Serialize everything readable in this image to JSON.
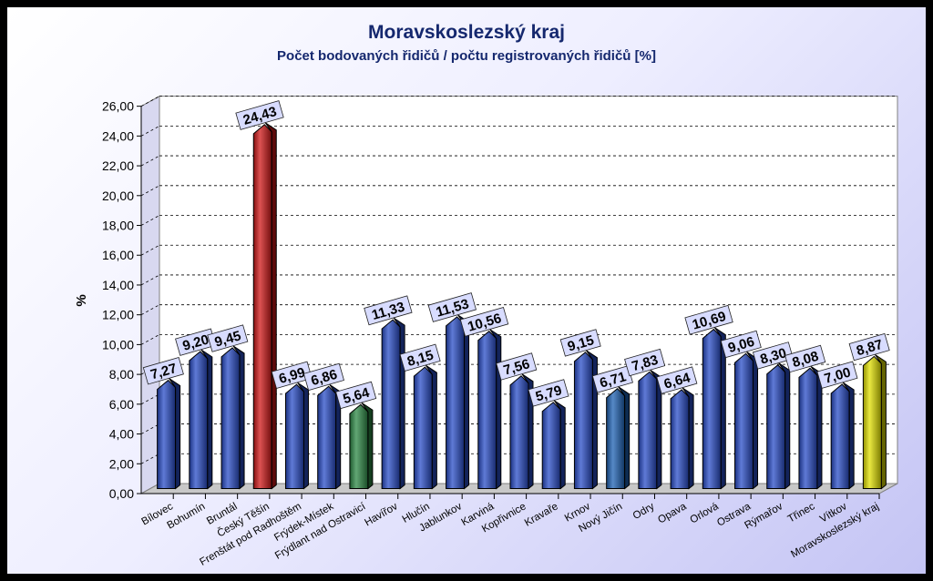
{
  "chart_data": {
    "type": "bar",
    "title": "Moravskoslezský kraj",
    "subtitle": "Počet bodovaných řidičů / počtu registrovaných řidičů [%]",
    "ylabel": "%",
    "xlabel": "",
    "ylim": [
      0,
      26
    ],
    "yticks": [
      "0,00",
      "2,00",
      "4,00",
      "6,00",
      "8,00",
      "10,00",
      "12,00",
      "14,00",
      "16,00",
      "18,00",
      "20,00",
      "22,00",
      "24,00",
      "26,00"
    ],
    "grid": true,
    "legend": "none",
    "categories": [
      "Bílovec",
      "Bohumín",
      "Bruntál",
      "Český Těšín",
      "Frenštát pod Radhoštěm",
      "Frýdek-Místek",
      "Frýdlant nad Ostravicí",
      "Havířov",
      "Hlučín",
      "Jablunkov",
      "Karviná",
      "Kopřivnice",
      "Kravaře",
      "Krnov",
      "Nový Jičín",
      "Odry",
      "Opava",
      "Orlová",
      "Ostrava",
      "Rýmařov",
      "Třinec",
      "Vítkov",
      "Moravskoslezský kraj"
    ],
    "values": [
      7.27,
      9.2,
      9.45,
      24.43,
      6.99,
      6.86,
      5.64,
      11.33,
      8.15,
      11.53,
      10.56,
      7.56,
      5.79,
      9.15,
      6.71,
      7.83,
      6.64,
      10.69,
      9.06,
      8.3,
      8.08,
      7.0,
      8.87
    ],
    "value_labels": [
      "7,27",
      "9,20",
      "9,45",
      "24,43",
      "6,99",
      "6,86",
      "5,64",
      "11,33",
      "8,15",
      "11,53",
      "10,56",
      "7,56",
      "5,79",
      "9,15",
      "6,71",
      "7,83",
      "6,64",
      "10,69",
      "9,06",
      "8,30",
      "8,08",
      "7,00",
      "8,87"
    ],
    "colors": [
      "#2a4dc8",
      "#2a4dc8",
      "#2a4dc8",
      "#d01818",
      "#2a4dc8",
      "#2a4dc8",
      "#2e8a46",
      "#2a4dc8",
      "#2a4dc8",
      "#2a4dc8",
      "#2a4dc8",
      "#2a4dc8",
      "#2a4dc8",
      "#2a4dc8",
      "#1e62b4",
      "#2a4dc8",
      "#2a4dc8",
      "#2a4dc8",
      "#2a4dc8",
      "#2a4dc8",
      "#2a4dc8",
      "#2a4dc8",
      "#e2e000"
    ]
  }
}
